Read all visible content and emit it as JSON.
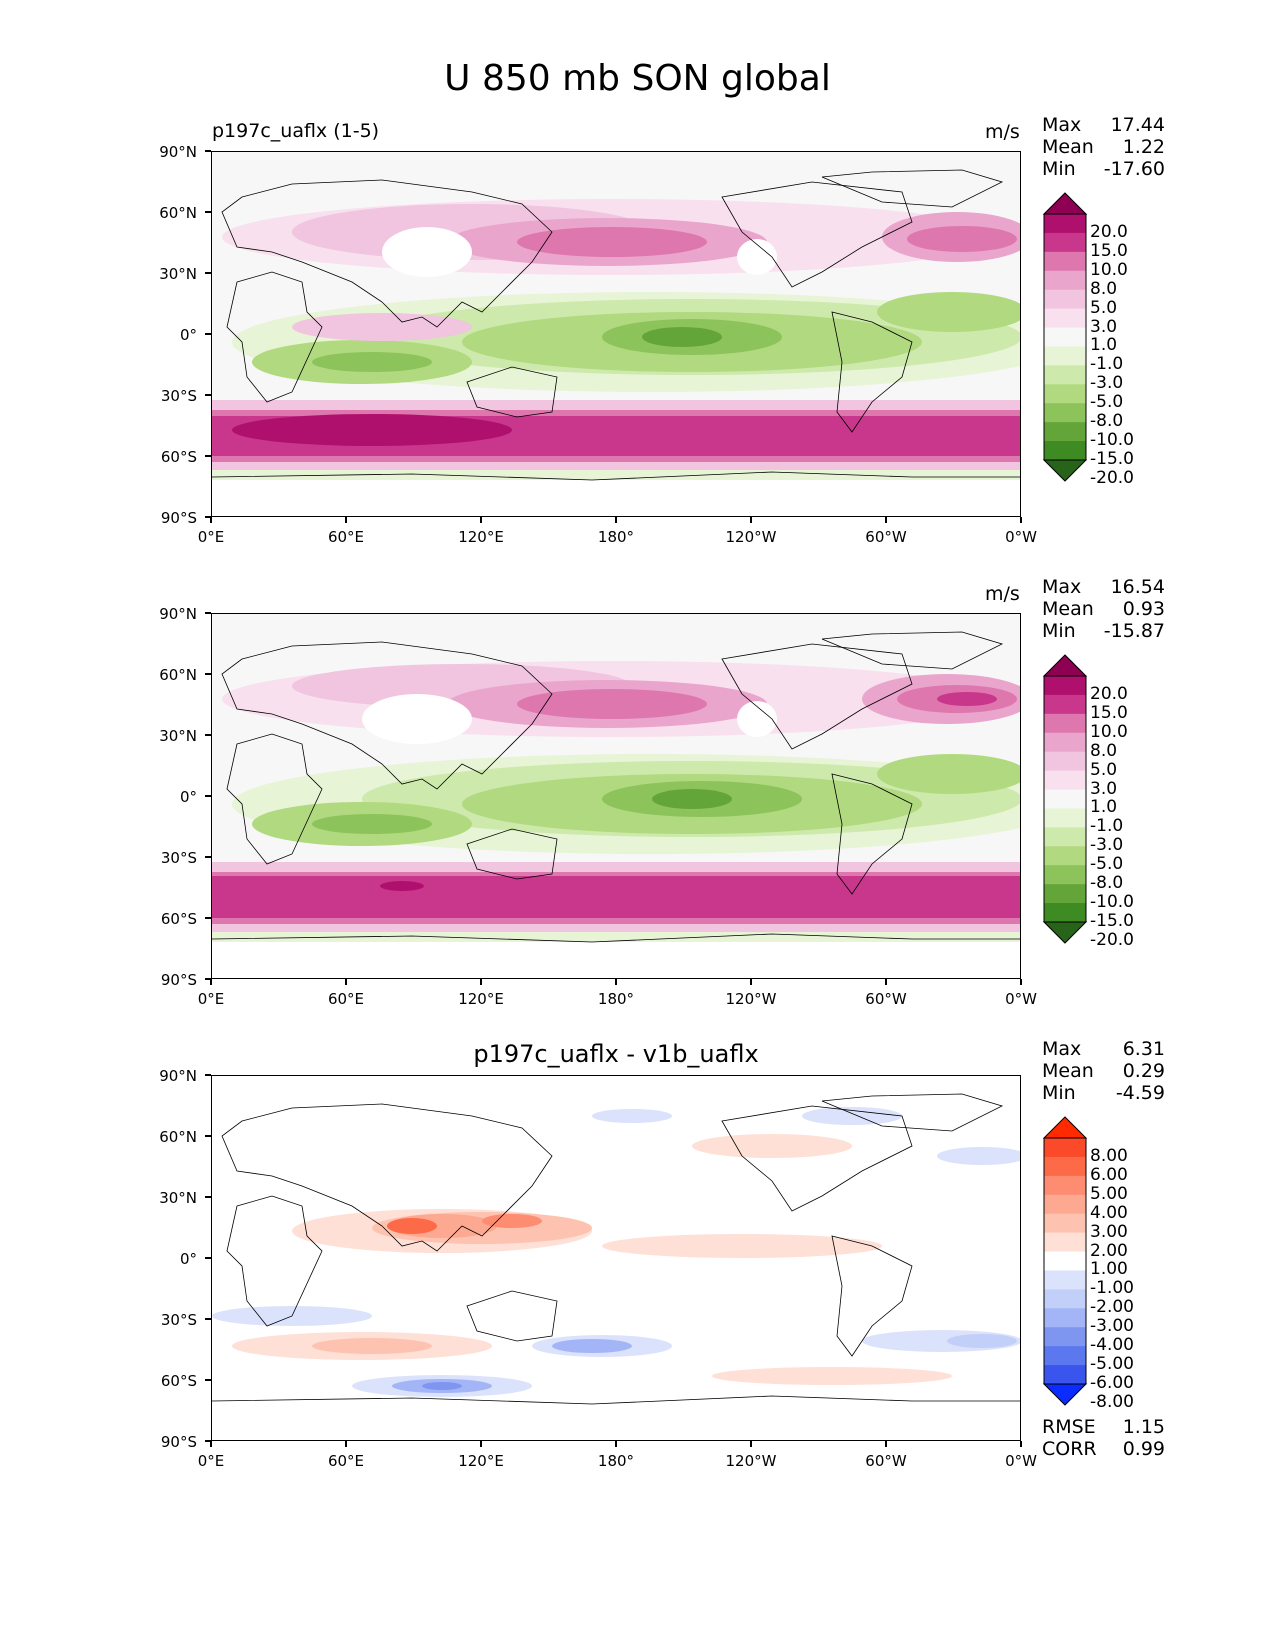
{
  "figure_title": "U 850 mb SON global",
  "panels": [
    {
      "id": "test",
      "title_left": "p197c_uaflx (1-5)",
      "title_center": "",
      "units": "m/s",
      "stats": [
        {
          "label": "Max",
          "value": "17.44"
        },
        {
          "label": "Mean",
          "value": "1.22"
        },
        {
          "label": "Min",
          "value": "-17.60"
        }
      ],
      "extra_stats": []
    },
    {
      "id": "ref",
      "title_left": "",
      "title_center": "",
      "units": "m/s",
      "stats": [
        {
          "label": "Max",
          "value": "16.54"
        },
        {
          "label": "Mean",
          "value": "0.93"
        },
        {
          "label": "Min",
          "value": "-15.87"
        }
      ],
      "extra_stats": []
    },
    {
      "id": "diff",
      "title_left": "",
      "title_center": "p197c_uaflx - v1b_uaflx",
      "units": "",
      "stats": [
        {
          "label": "Max",
          "value": "6.31"
        },
        {
          "label": "Mean",
          "value": "0.29"
        },
        {
          "label": "Min",
          "value": "-4.59"
        }
      ],
      "extra_stats": [
        {
          "label": "RMSE",
          "value": "1.15"
        },
        {
          "label": "CORR",
          "value": "0.99"
        }
      ]
    }
  ],
  "axes": {
    "x_ticks": [
      "0°E",
      "60°E",
      "120°E",
      "180°",
      "120°W",
      "60°W",
      "0°W"
    ],
    "y_ticks": [
      "90°N",
      "60°N",
      "30°N",
      "0°",
      "30°S",
      "60°S",
      "90°S"
    ]
  },
  "colorbars": {
    "field": {
      "labels": [
        "20.0",
        "15.0",
        "10.0",
        "8.0",
        "5.0",
        "3.0",
        "1.0",
        "-1.0",
        "-3.0",
        "-5.0",
        "-8.0",
        "-10.0",
        "-15.0",
        "-20.0"
      ],
      "colors": [
        "#8e0152",
        "#b0106d",
        "#c9378d",
        "#de77ae",
        "#eaa5cc",
        "#f1c4e0",
        "#f8e0ee",
        "#f7f7f7",
        "#e7f4d6",
        "#cde9ab",
        "#b1d97f",
        "#8cc35a",
        "#64a53a",
        "#3e8a23",
        "#276419"
      ]
    },
    "diff": {
      "labels": [
        "8.00",
        "6.00",
        "5.00",
        "4.00",
        "3.00",
        "2.00",
        "1.00",
        "-1.00",
        "-2.00",
        "-3.00",
        "-4.00",
        "-5.00",
        "-6.00",
        "-8.00"
      ],
      "colors": [
        "#ff2a00",
        "#fb4a2a",
        "#fc6a48",
        "#fd8c70",
        "#fda891",
        "#fdc3b0",
        "#fee0d6",
        "#ffffff",
        "#dbe2fb",
        "#c2cff9",
        "#a3b5f6",
        "#7f96f1",
        "#5c78ee",
        "#3a55ee",
        "#0a2cff"
      ]
    }
  },
  "chart_data": [
    {
      "type": "heatmap",
      "title": "p197c_uaflx (1-5)",
      "units": "m/s",
      "x_ticks": [
        "0°E",
        "60°E",
        "120°E",
        "180°",
        "120°W",
        "60°W",
        "0°W"
      ],
      "y_ticks": [
        "90°N",
        "60°N",
        "30°N",
        "0°",
        "30°S",
        "60°S",
        "90°S"
      ],
      "xlim": [
        0,
        360
      ],
      "ylim": [
        -90,
        90
      ],
      "levels": [
        -20,
        -15,
        -10,
        -8,
        -5,
        -3,
        -1,
        1,
        3,
        5,
        8,
        10,
        15,
        20
      ],
      "max": 17.44,
      "mean": 1.22,
      "min": -17.6,
      "zonal_profile": {
        "lat": [
          80,
          60,
          50,
          40,
          30,
          20,
          10,
          0,
          -10,
          -20,
          -30,
          -40,
          -50,
          -55,
          -60,
          -70,
          -80
        ],
        "u": [
          0,
          3,
          8,
          5,
          1,
          -4,
          -5,
          -8,
          -6,
          -3,
          3,
          10,
          15,
          13,
          8,
          -2,
          0
        ]
      }
    },
    {
      "type": "heatmap",
      "title": "",
      "units": "m/s",
      "x_ticks": [
        "0°E",
        "60°E",
        "120°E",
        "180°",
        "120°W",
        "60°W",
        "0°W"
      ],
      "y_ticks": [
        "90°N",
        "60°N",
        "30°N",
        "0°",
        "30°S",
        "60°S",
        "90°S"
      ],
      "xlim": [
        0,
        360
      ],
      "ylim": [
        -90,
        90
      ],
      "levels": [
        -20,
        -15,
        -10,
        -8,
        -5,
        -3,
        -1,
        1,
        3,
        5,
        8,
        10,
        15,
        20
      ],
      "max": 16.54,
      "mean": 0.93,
      "min": -15.87,
      "zonal_profile": {
        "lat": [
          80,
          60,
          50,
          40,
          30,
          20,
          10,
          0,
          -10,
          -20,
          -30,
          -40,
          -50,
          -55,
          -60,
          -70,
          -80
        ],
        "u": [
          0,
          3,
          8,
          5,
          1,
          -4,
          -5,
          -8,
          -6,
          -3,
          3,
          10,
          14,
          12,
          8,
          -2,
          0
        ]
      }
    },
    {
      "type": "heatmap",
      "title": "p197c_uaflx - v1b_uaflx",
      "units": "",
      "x_ticks": [
        "0°E",
        "60°E",
        "120°E",
        "180°",
        "120°W",
        "60°W",
        "0°W"
      ],
      "y_ticks": [
        "90°N",
        "60°N",
        "30°N",
        "0°",
        "30°S",
        "60°S",
        "90°S"
      ],
      "xlim": [
        0,
        360
      ],
      "ylim": [
        -90,
        90
      ],
      "levels": [
        -8,
        -6,
        -5,
        -4,
        -3,
        -2,
        -1,
        1,
        2,
        3,
        4,
        5,
        6,
        8
      ],
      "max": 6.31,
      "mean": 0.29,
      "min": -4.59,
      "rmse": 1.15,
      "corr": 0.99
    }
  ]
}
